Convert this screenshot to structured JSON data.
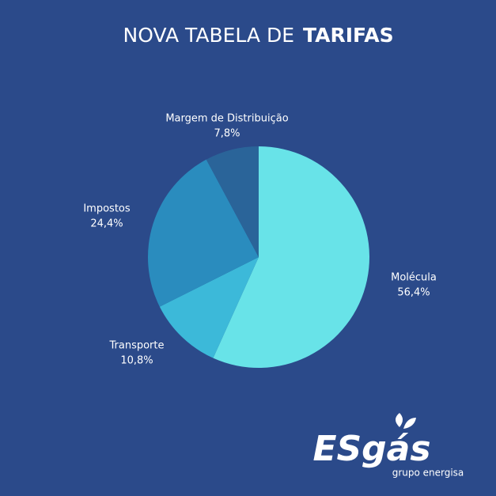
{
  "chart_data": {
    "type": "pie",
    "title": "NOVA TABELA DE",
    "title_bold": "TARIFAS",
    "categories": [
      "Molécula",
      "Transporte",
      "Impostos",
      "Margem de Distribuição"
    ],
    "values": [
      56.4,
      10.8,
      24.4,
      7.8
    ],
    "value_labels": [
      "56,4%",
      "10,8%",
      "24,4%",
      "7,8%"
    ],
    "colors": [
      "#68e3e8",
      "#3cb9d9",
      "#2a8cbe",
      "#2a6499"
    ]
  },
  "logo": {
    "text": "ESgás",
    "tagline": "grupo energisa"
  }
}
